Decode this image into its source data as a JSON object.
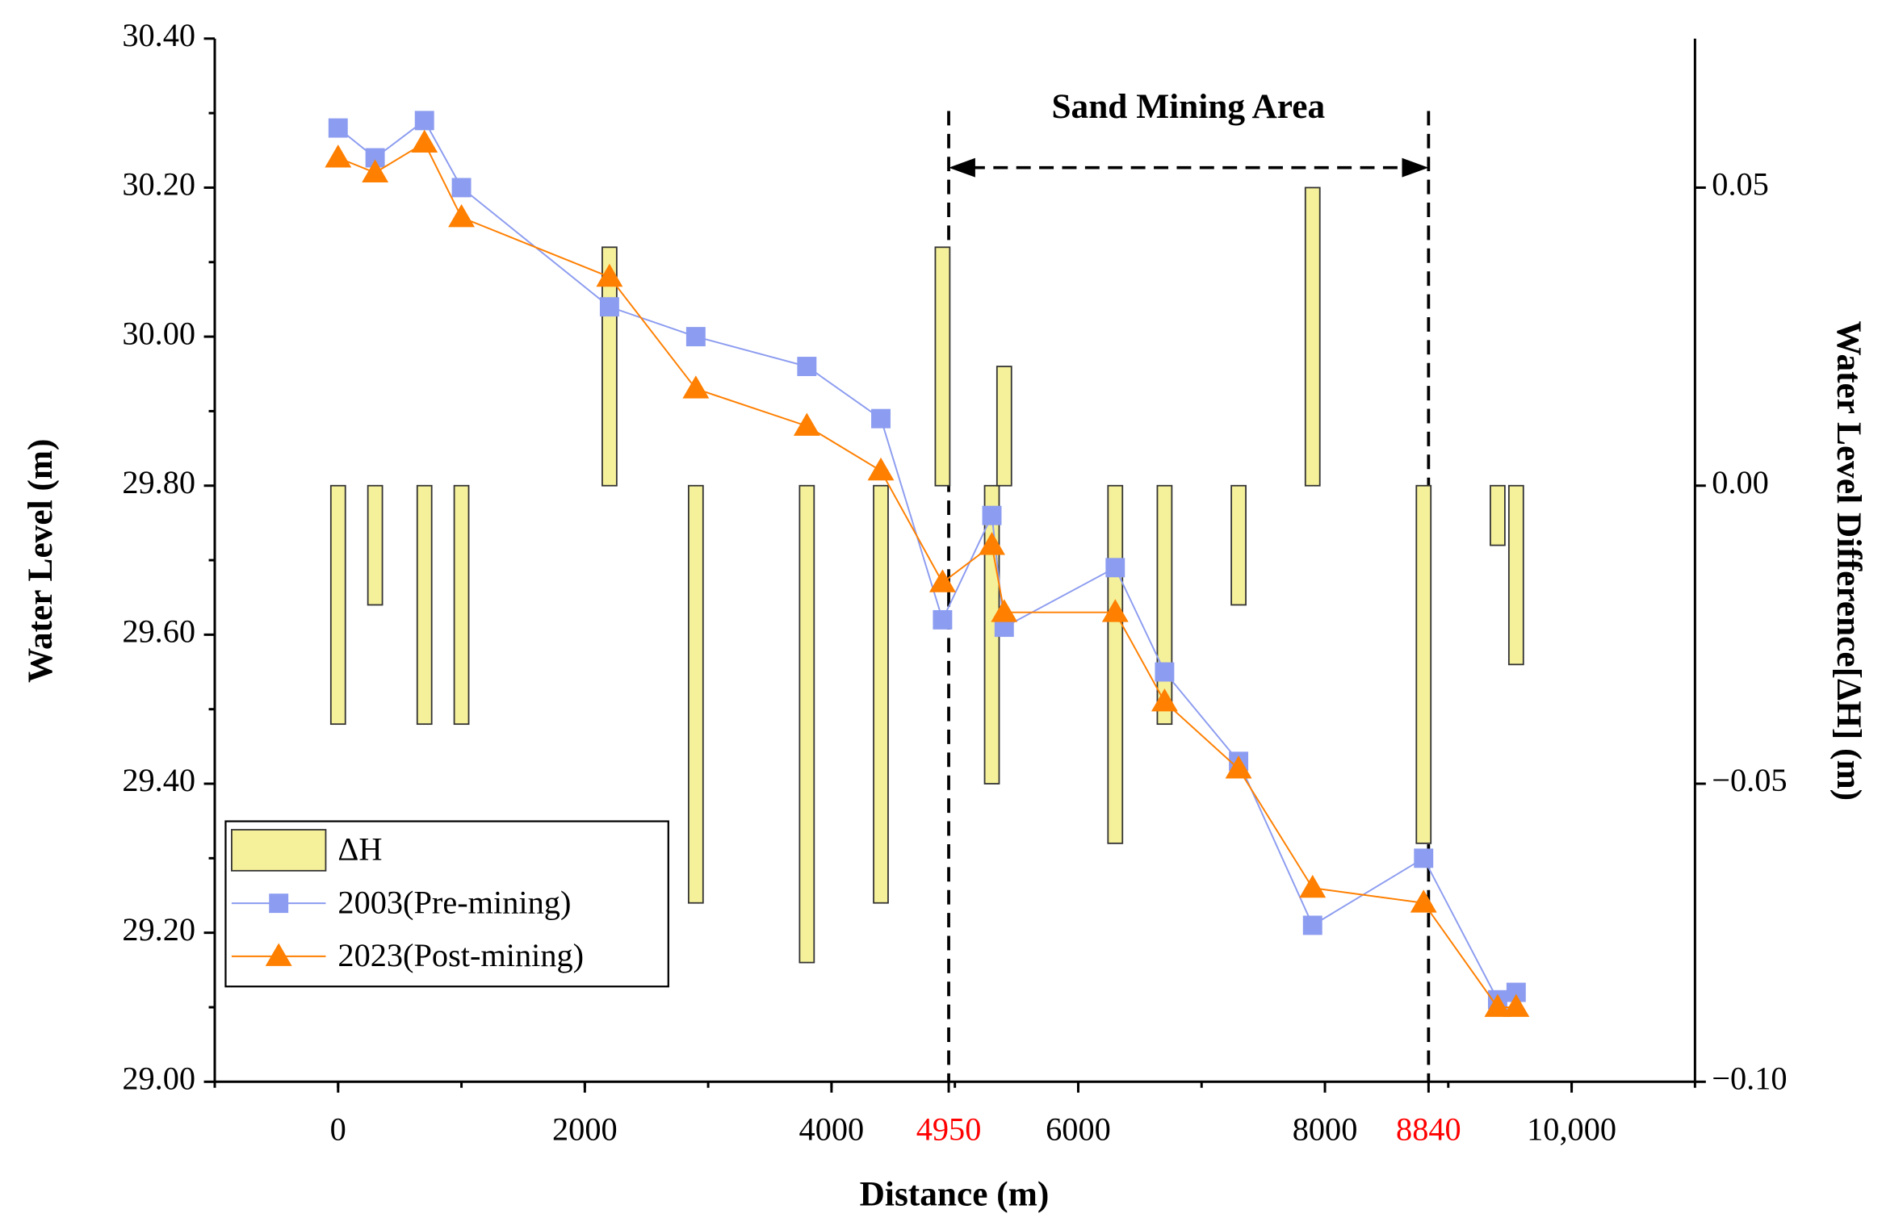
{
  "chart_data": {
    "type": "combo",
    "xlabel": "Distance (m)",
    "ylabel": "Water Level (m)",
    "y2label": "Water Level Difference[ΔH] (m)",
    "annotation": "Sand Mining Area",
    "region": [
      4950,
      8840
    ],
    "xlim": [
      -1000,
      11000
    ],
    "xticks": [
      0,
      2000,
      4000,
      4950,
      6000,
      8000,
      8840,
      {
        "value": 10000,
        "label": "10,000"
      }
    ],
    "xtick_colors": [
      "#000000",
      "#000000",
      "#000000",
      "#ff0000",
      "#000000",
      "#000000",
      "#ff0000",
      "#000000"
    ],
    "ylim": [
      29.0,
      30.4
    ],
    "yticks": [
      {
        "value": 29.0,
        "label": "29.00"
      },
      {
        "value": 29.2,
        "label": "29.20"
      },
      {
        "value": 29.4,
        "label": "29.40"
      },
      {
        "value": 29.6,
        "label": "29.60"
      },
      {
        "value": 29.8,
        "label": "29.80"
      },
      {
        "value": 30.0,
        "label": "30.00"
      },
      {
        "value": 30.2,
        "label": "30.20"
      },
      {
        "value": 30.4,
        "label": "30.40"
      }
    ],
    "y2lim": [
      -0.1,
      0.075
    ],
    "y2ticks": [
      {
        "value": -0.1,
        "label": "−0.10"
      },
      {
        "value": -0.05,
        "label": "−0.05"
      },
      {
        "value": 0,
        "label": "0.00"
      },
      {
        "value": 0.05,
        "label": "0.05"
      }
    ],
    "legend": "lower left",
    "x": [
      0,
      300,
      700,
      1000,
      2200,
      2900,
      3800,
      4400,
      4900,
      5300,
      5400,
      6300,
      6700,
      7300,
      7900,
      8800,
      9400,
      9550
    ],
    "series": [
      {
        "name": "ΔH",
        "type": "bar",
        "axis": "y2",
        "color": "#f5f09a",
        "values": [
          -0.04,
          -0.02,
          -0.04,
          -0.04,
          0.04,
          -0.07,
          -0.08,
          -0.07,
          0.04,
          -0.05,
          0.02,
          -0.06,
          -0.04,
          -0.02,
          0.05,
          -0.06,
          -0.01,
          -0.03
        ]
      },
      {
        "name": "2003(Pre-mining)",
        "type": "line",
        "marker": "square",
        "color": "#8c9cf0",
        "values": [
          30.28,
          30.24,
          30.29,
          30.2,
          30.04,
          30.0,
          29.96,
          29.89,
          29.62,
          29.76,
          29.61,
          29.69,
          29.55,
          29.43,
          29.21,
          29.3,
          29.11,
          29.12
        ]
      },
      {
        "name": "2023(Post-mining)",
        "type": "line",
        "marker": "triangle",
        "color": "#ff7f00",
        "values": [
          30.24,
          30.22,
          30.26,
          30.16,
          30.08,
          29.93,
          29.88,
          29.82,
          29.67,
          29.72,
          29.63,
          29.63,
          29.51,
          29.42,
          29.26,
          29.24,
          29.1,
          29.1
        ]
      }
    ]
  }
}
